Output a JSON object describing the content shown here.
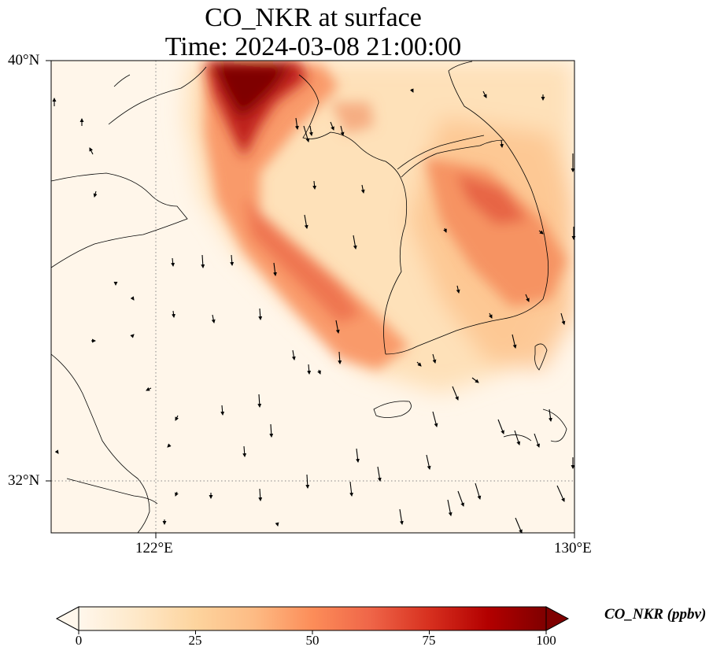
{
  "title": {
    "line1": "CO_NKR at surface",
    "line2": "Time: 2024-03-08 21:00:00"
  },
  "axes": {
    "lat_labels": [
      "40°N",
      "32°N"
    ],
    "lon_labels": [
      "122°E",
      "130°E"
    ],
    "lat_range": [
      31,
      40
    ],
    "lon_range": [
      120,
      130
    ],
    "gridlines": "dotted"
  },
  "colorbar": {
    "label": "CO_NKR (ppbv)",
    "ticks": [
      "0",
      "25",
      "50",
      "75",
      "100"
    ],
    "range": [
      0,
      100
    ],
    "colormap": "OrRd",
    "extend": "both",
    "colors": [
      "#fff7ec",
      "#fee8c8",
      "#fdd49e",
      "#fdbb84",
      "#fc8d59",
      "#ef6548",
      "#d7301f",
      "#b30000",
      "#7f0000"
    ]
  },
  "chart_data": {
    "type": "heatmap",
    "title": "CO_NKR at surface",
    "subtitle": "Time: 2024-03-08 21:00:00",
    "variable": "CO_NKR",
    "units": "ppbv",
    "value_range": [
      0,
      100
    ],
    "xlim": [
      120,
      130
    ],
    "ylim": [
      31,
      40
    ],
    "features": [
      "coastlines",
      "wind-vectors"
    ]
  }
}
